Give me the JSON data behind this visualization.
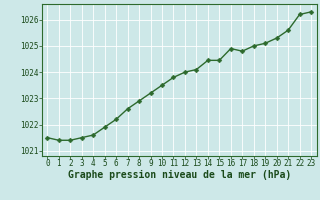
{
  "x": [
    0,
    1,
    2,
    3,
    4,
    5,
    6,
    7,
    8,
    9,
    10,
    11,
    12,
    13,
    14,
    15,
    16,
    17,
    18,
    19,
    20,
    21,
    22,
    23
  ],
  "y": [
    1021.5,
    1021.4,
    1021.4,
    1021.5,
    1021.6,
    1021.9,
    1022.2,
    1022.6,
    1022.9,
    1023.2,
    1023.5,
    1023.8,
    1024.0,
    1024.1,
    1024.45,
    1024.45,
    1024.9,
    1024.8,
    1025.0,
    1025.1,
    1025.3,
    1025.6,
    1026.2,
    1026.3
  ],
  "line_color": "#2d6a2d",
  "marker": "D",
  "marker_size": 2.5,
  "line_width": 1.0,
  "background_color": "#cde8e8",
  "grid_color": "#ffffff",
  "xlabel": "Graphe pression niveau de la mer (hPa)",
  "xlabel_color": "#1a4a1a",
  "xlabel_fontsize": 7.0,
  "tick_color": "#1a4a1a",
  "tick_fontsize": 5.5,
  "ylim": [
    1020.8,
    1026.6
  ],
  "yticks": [
    1021,
    1022,
    1023,
    1024,
    1025,
    1026
  ],
  "xlim": [
    -0.5,
    23.5
  ],
  "xticks": [
    0,
    1,
    2,
    3,
    4,
    5,
    6,
    7,
    8,
    9,
    10,
    11,
    12,
    13,
    14,
    15,
    16,
    17,
    18,
    19,
    20,
    21,
    22,
    23
  ],
  "spine_color": "#2d6a2d"
}
